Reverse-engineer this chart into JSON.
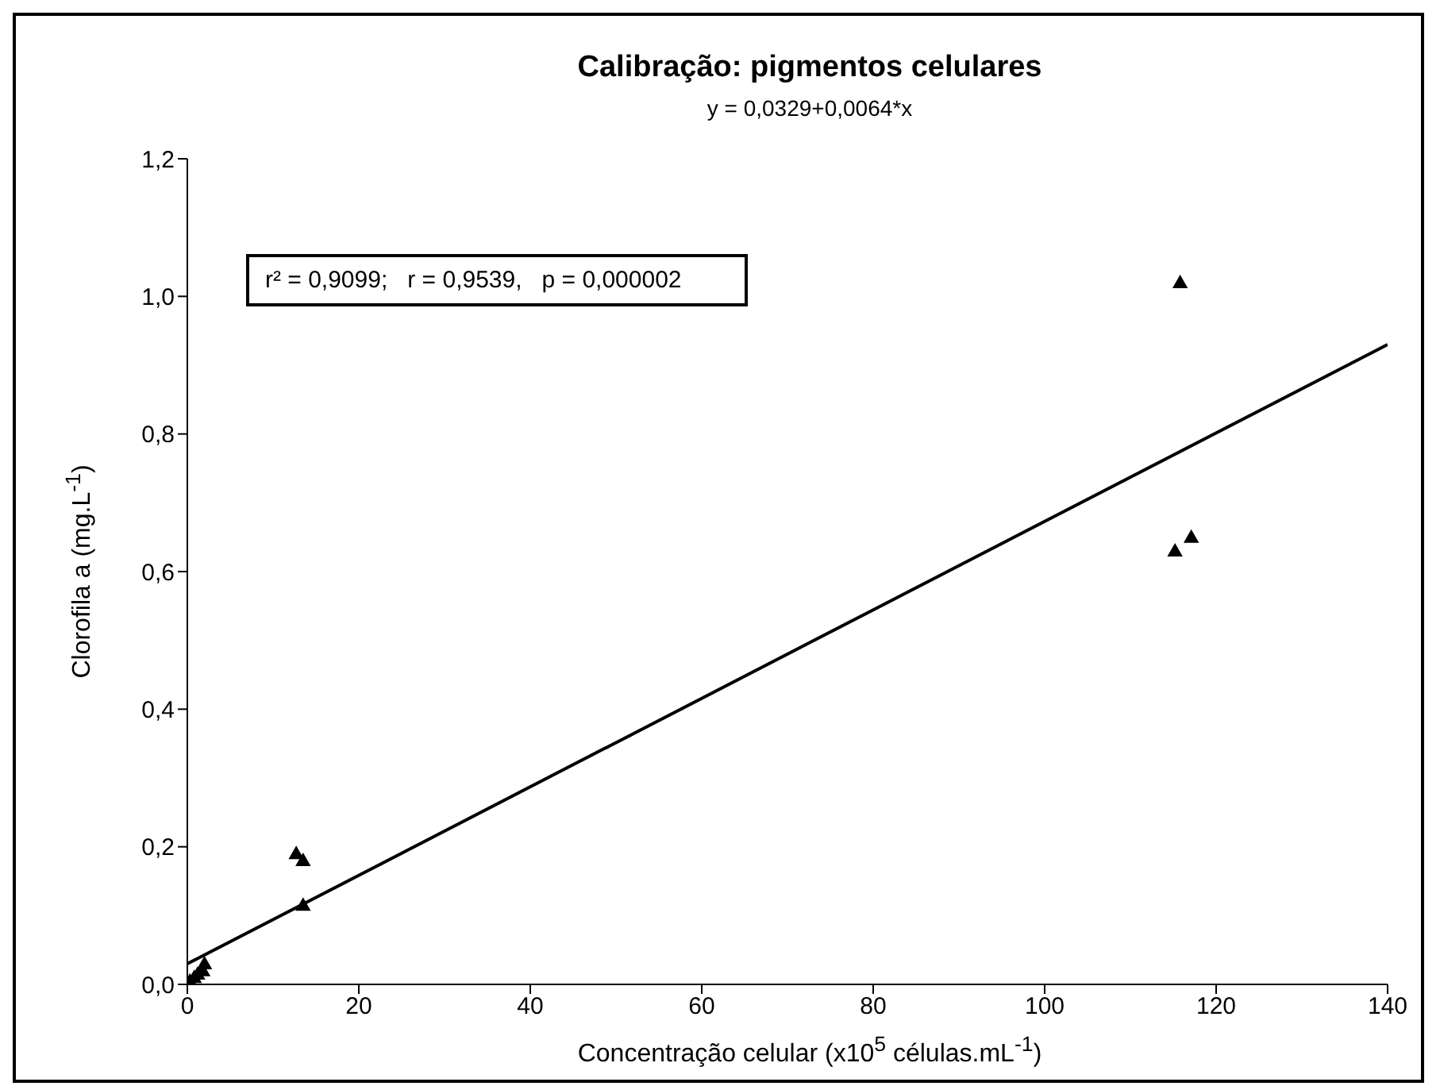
{
  "chart_data": {
    "type": "scatter",
    "title": "Calibração: pigmentos celulares",
    "subtitle": "y = 0,0329+0,0064*x",
    "xlabel": "Concentração celular (x10$^{5}$ células.mL$^{-1}$)",
    "ylabel": "Clorofila a (mg.L$^{-1}$)",
    "annotations": [
      "r² = 0,9099;   r = 0,9539,   p = 0,000002"
    ],
    "series": [
      {
        "color": "#000000",
        "marker": "triangle",
        "x": [
          0.3,
          0.8,
          1.2,
          1.8,
          2.0,
          12.7,
          13.5,
          13.5,
          115.2,
          115.8,
          117.1
        ],
        "values": [
          0.005,
          0.01,
          0.015,
          0.02,
          0.03,
          0.19,
          0.18,
          0.115,
          0.63,
          1.02,
          0.65
        ]
      },
      {
        "type": "line",
        "color": "#000000",
        "marker": "none",
        "x": [
          0,
          140
        ],
        "values": [
          0.03,
          0.93
        ]
      }
    ],
    "xlim": [
      0,
      140
    ],
    "xticks": [
      0,
      20,
      40,
      60,
      80,
      100,
      120,
      140
    ],
    "ylim": [
      0,
      1.2
    ],
    "yticks": [
      {
        "value": 0,
        "label": "0,0"
      },
      {
        "value": 0.2,
        "label": "0,2"
      },
      {
        "value": 0.4,
        "label": "0,4"
      },
      {
        "value": 0.6,
        "label": "0,6"
      },
      {
        "value": 0.8,
        "label": "0,8"
      },
      {
        "value": 1,
        "label": "1,0"
      },
      {
        "value": 1.2,
        "label": "1,2"
      }
    ],
    "grid": false
  }
}
